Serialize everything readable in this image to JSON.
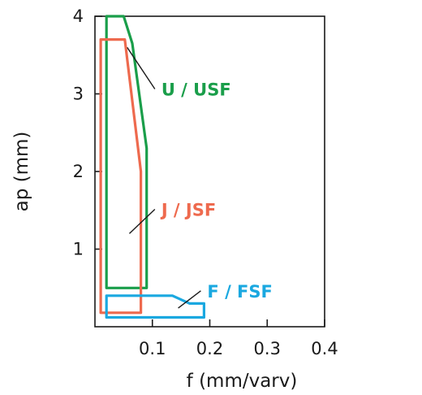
{
  "chart_data": {
    "type": "scatter",
    "title": "",
    "xlabel": "f (mm/varv)",
    "ylabel": "ap (mm)",
    "xlim": [
      0,
      0.4
    ],
    "ylim": [
      0,
      4
    ],
    "xticks": [
      {
        "value": 0.1,
        "label": "0.1"
      },
      {
        "value": 0.2,
        "label": "0.2"
      },
      {
        "value": 0.3,
        "label": "0.3"
      },
      {
        "value": 0.4,
        "label": "0.4"
      }
    ],
    "yticks": [
      {
        "value": 1,
        "label": "1"
      },
      {
        "value": 2,
        "label": "2"
      },
      {
        "value": 3,
        "label": "3"
      },
      {
        "value": 4,
        "label": "4"
      }
    ],
    "grid": false,
    "regions": [
      {
        "name": "U / USF",
        "color": "#1a9e4a",
        "outline": [
          [
            0.05,
            4.0
          ],
          [
            0.065,
            3.65
          ],
          [
            0.09,
            2.3
          ],
          [
            0.09,
            0.5
          ],
          [
            0.02,
            0.5
          ],
          [
            0.02,
            4.0
          ]
        ],
        "leader_from": [
          0.056,
          3.6
        ],
        "label_at": [
          0.11,
          3.0
        ]
      },
      {
        "name": "J / JSF",
        "color": "#ee6a4e",
        "outline": [
          [
            0.035,
            3.7
          ],
          [
            0.052,
            3.7
          ],
          [
            0.08,
            2.0
          ],
          [
            0.08,
            0.18
          ],
          [
            0.01,
            0.18
          ],
          [
            0.01,
            3.7
          ]
        ],
        "leader_from": [
          0.06,
          1.2
        ],
        "label_at": [
          0.11,
          1.45
        ]
      },
      {
        "name": "F / FSF",
        "color": "#1aa8e0",
        "outline": [
          [
            0.02,
            0.4
          ],
          [
            0.135,
            0.4
          ],
          [
            0.165,
            0.3
          ],
          [
            0.19,
            0.3
          ],
          [
            0.19,
            0.12
          ],
          [
            0.02,
            0.12
          ]
        ],
        "leader_from": [
          0.145,
          0.24
        ],
        "label_at": [
          0.19,
          0.4
        ]
      }
    ]
  }
}
